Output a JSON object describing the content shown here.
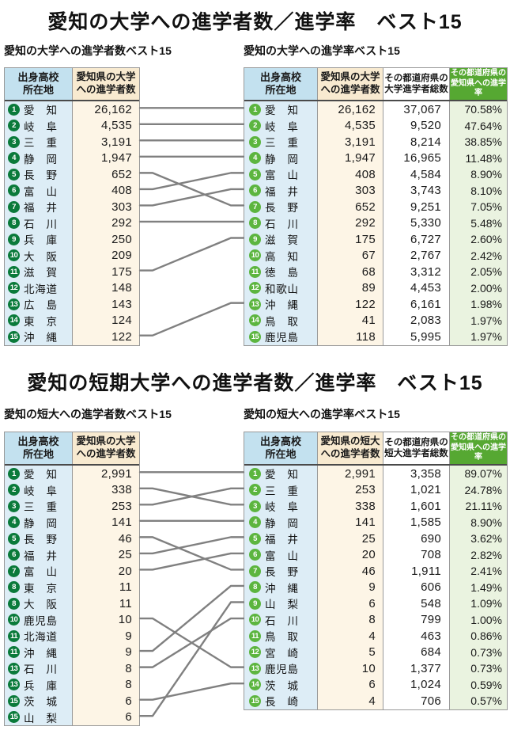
{
  "colors": {
    "badge_dark": "#0a7a3a",
    "badge_light": "#5cb53f",
    "header_blue": "#c3e1ef",
    "body_blue": "#ddedf6",
    "header_cream": "#f8ead0",
    "body_cream": "#fdf5e6",
    "header_green": "#56a832",
    "body_green": "#eaf3e0",
    "connector": "#808080"
  },
  "sections": [
    {
      "title": "愛知の大学への進学者数／進学率　ベスト15",
      "left": {
        "subtitle": "愛知の大学への進学者数ベスト15",
        "headers": [
          "出身高校\n所在地",
          "愛知県の大学\nへの進学者数"
        ],
        "rows": [
          {
            "rank": "1",
            "name": "愛知",
            "value": "26,162"
          },
          {
            "rank": "2",
            "name": "岐阜",
            "value": "4,535"
          },
          {
            "rank": "3",
            "name": "三重",
            "value": "3,191"
          },
          {
            "rank": "4",
            "name": "静岡",
            "value": "1,947"
          },
          {
            "rank": "5",
            "name": "長野",
            "value": "652"
          },
          {
            "rank": "6",
            "name": "富山",
            "value": "408"
          },
          {
            "rank": "7",
            "name": "福井",
            "value": "303"
          },
          {
            "rank": "8",
            "name": "石川",
            "value": "292"
          },
          {
            "rank": "9",
            "name": "兵庫",
            "value": "250"
          },
          {
            "rank": "10",
            "name": "大阪",
            "value": "209"
          },
          {
            "rank": "11",
            "name": "滋賀",
            "value": "175"
          },
          {
            "rank": "12",
            "name": "北海道",
            "value": "148"
          },
          {
            "rank": "13",
            "name": "広島",
            "value": "143"
          },
          {
            "rank": "14",
            "name": "東京",
            "value": "124"
          },
          {
            "rank": "15",
            "name": "沖縄",
            "value": "122"
          }
        ]
      },
      "right": {
        "subtitle": "愛知の大学への進学率ベスト15",
        "headers": [
          "出身高校\n所在地",
          "愛知県の大学\nへの進学者数",
          "その都道府県の\n大学進学者総数",
          "その都道府県の\n愛知県への進学率"
        ],
        "rows": [
          {
            "rank": "1",
            "name": "愛知",
            "value": "26,162",
            "total": "37,067",
            "rate": "70.58%"
          },
          {
            "rank": "2",
            "name": "岐阜",
            "value": "4,535",
            "total": "9,520",
            "rate": "47.64%"
          },
          {
            "rank": "3",
            "name": "三重",
            "value": "3,191",
            "total": "8,214",
            "rate": "38.85%"
          },
          {
            "rank": "4",
            "name": "静岡",
            "value": "1,947",
            "total": "16,965",
            "rate": "11.48%"
          },
          {
            "rank": "5",
            "name": "富山",
            "value": "408",
            "total": "4,584",
            "rate": "8.90%"
          },
          {
            "rank": "6",
            "name": "福井",
            "value": "303",
            "total": "3,743",
            "rate": "8.10%"
          },
          {
            "rank": "7",
            "name": "長野",
            "value": "652",
            "total": "9,251",
            "rate": "7.05%"
          },
          {
            "rank": "8",
            "name": "石川",
            "value": "292",
            "total": "5,330",
            "rate": "5.48%"
          },
          {
            "rank": "9",
            "name": "滋賀",
            "value": "175",
            "total": "6,727",
            "rate": "2.60%"
          },
          {
            "rank": "10",
            "name": "高知",
            "value": "67",
            "total": "2,767",
            "rate": "2.42%"
          },
          {
            "rank": "11",
            "name": "徳島",
            "value": "68",
            "total": "3,312",
            "rate": "2.05%"
          },
          {
            "rank": "12",
            "name": "和歌山",
            "value": "89",
            "total": "4,453",
            "rate": "2.00%"
          },
          {
            "rank": "13",
            "name": "沖縄",
            "value": "122",
            "total": "6,161",
            "rate": "1.98%"
          },
          {
            "rank": "14",
            "name": "鳥取",
            "value": "41",
            "total": "2,083",
            "rate": "1.97%"
          },
          {
            "rank": "15",
            "name": "鹿児島",
            "value": "118",
            "total": "5,995",
            "rate": "1.97%"
          }
        ]
      },
      "connectors": [
        [
          0,
          0
        ],
        [
          1,
          1
        ],
        [
          2,
          2
        ],
        [
          3,
          3
        ],
        [
          4,
          6
        ],
        [
          5,
          4
        ],
        [
          6,
          5
        ],
        [
          7,
          7
        ],
        [
          10,
          8
        ],
        [
          14,
          12
        ]
      ]
    },
    {
      "title": "愛知の短期大学への進学者数／進学率　ベスト15",
      "left": {
        "subtitle": "愛知の短大への進学者数ベスト15",
        "headers": [
          "出身高校\n所在地",
          "愛知県の大学\nへの進学者数"
        ],
        "rows": [
          {
            "rank": "1",
            "name": "愛知",
            "value": "2,991"
          },
          {
            "rank": "2",
            "name": "岐阜",
            "value": "338"
          },
          {
            "rank": "3",
            "name": "三重",
            "value": "253"
          },
          {
            "rank": "4",
            "name": "静岡",
            "value": "141"
          },
          {
            "rank": "5",
            "name": "長野",
            "value": "46"
          },
          {
            "rank": "6",
            "name": "福井",
            "value": "25"
          },
          {
            "rank": "7",
            "name": "富山",
            "value": "20"
          },
          {
            "rank": "8",
            "name": "東京",
            "value": "11"
          },
          {
            "rank": "8",
            "name": "大阪",
            "value": "11"
          },
          {
            "rank": "10",
            "name": "鹿児島",
            "value": "10"
          },
          {
            "rank": "11",
            "name": "北海道",
            "value": "9"
          },
          {
            "rank": "11",
            "name": "沖縄",
            "value": "9"
          },
          {
            "rank": "13",
            "name": "石川",
            "value": "8"
          },
          {
            "rank": "13",
            "name": "兵庫",
            "value": "8"
          },
          {
            "rank": "15",
            "name": "茨城",
            "value": "6"
          },
          {
            "rank": "15",
            "name": "山梨",
            "value": "6"
          }
        ]
      },
      "right": {
        "subtitle": "愛知の短大への進学率ベスト15",
        "headers": [
          "出身高校\n所在地",
          "愛知県の短大\nへの進学者数",
          "その都道府県の\n短大進学者総数",
          "その都道府県の\n愛知県への進学率"
        ],
        "rows": [
          {
            "rank": "1",
            "name": "愛知",
            "value": "2,991",
            "total": "3,358",
            "rate": "89.07%"
          },
          {
            "rank": "2",
            "name": "三重",
            "value": "253",
            "total": "1,021",
            "rate": "24.78%"
          },
          {
            "rank": "3",
            "name": "岐阜",
            "value": "338",
            "total": "1,601",
            "rate": "21.11%"
          },
          {
            "rank": "4",
            "name": "静岡",
            "value": "141",
            "total": "1,585",
            "rate": "8.90%"
          },
          {
            "rank": "5",
            "name": "福井",
            "value": "25",
            "total": "690",
            "rate": "3.62%"
          },
          {
            "rank": "6",
            "name": "富山",
            "value": "20",
            "total": "708",
            "rate": "2.82%"
          },
          {
            "rank": "7",
            "name": "長野",
            "value": "46",
            "total": "1,911",
            "rate": "2.41%"
          },
          {
            "rank": "8",
            "name": "沖縄",
            "value": "9",
            "total": "606",
            "rate": "1.49%"
          },
          {
            "rank": "9",
            "name": "山梨",
            "value": "6",
            "total": "548",
            "rate": "1.09%"
          },
          {
            "rank": "10",
            "name": "石川",
            "value": "8",
            "total": "799",
            "rate": "1.00%"
          },
          {
            "rank": "11",
            "name": "鳥取",
            "value": "4",
            "total": "463",
            "rate": "0.86%"
          },
          {
            "rank": "12",
            "name": "宮崎",
            "value": "5",
            "total": "684",
            "rate": "0.73%"
          },
          {
            "rank": "13",
            "name": "鹿児島",
            "value": "10",
            "total": "1,377",
            "rate": "0.73%"
          },
          {
            "rank": "14",
            "name": "茨城",
            "value": "6",
            "total": "1,024",
            "rate": "0.59%"
          },
          {
            "rank": "15",
            "name": "長崎",
            "value": "4",
            "total": "706",
            "rate": "0.57%"
          }
        ]
      },
      "connectors": [
        [
          0,
          0
        ],
        [
          1,
          2
        ],
        [
          2,
          1
        ],
        [
          3,
          3
        ],
        [
          4,
          6
        ],
        [
          5,
          4
        ],
        [
          6,
          5
        ],
        [
          9,
          12
        ],
        [
          11,
          7
        ],
        [
          12,
          9
        ],
        [
          14,
          13
        ],
        [
          15,
          8
        ]
      ]
    }
  ]
}
